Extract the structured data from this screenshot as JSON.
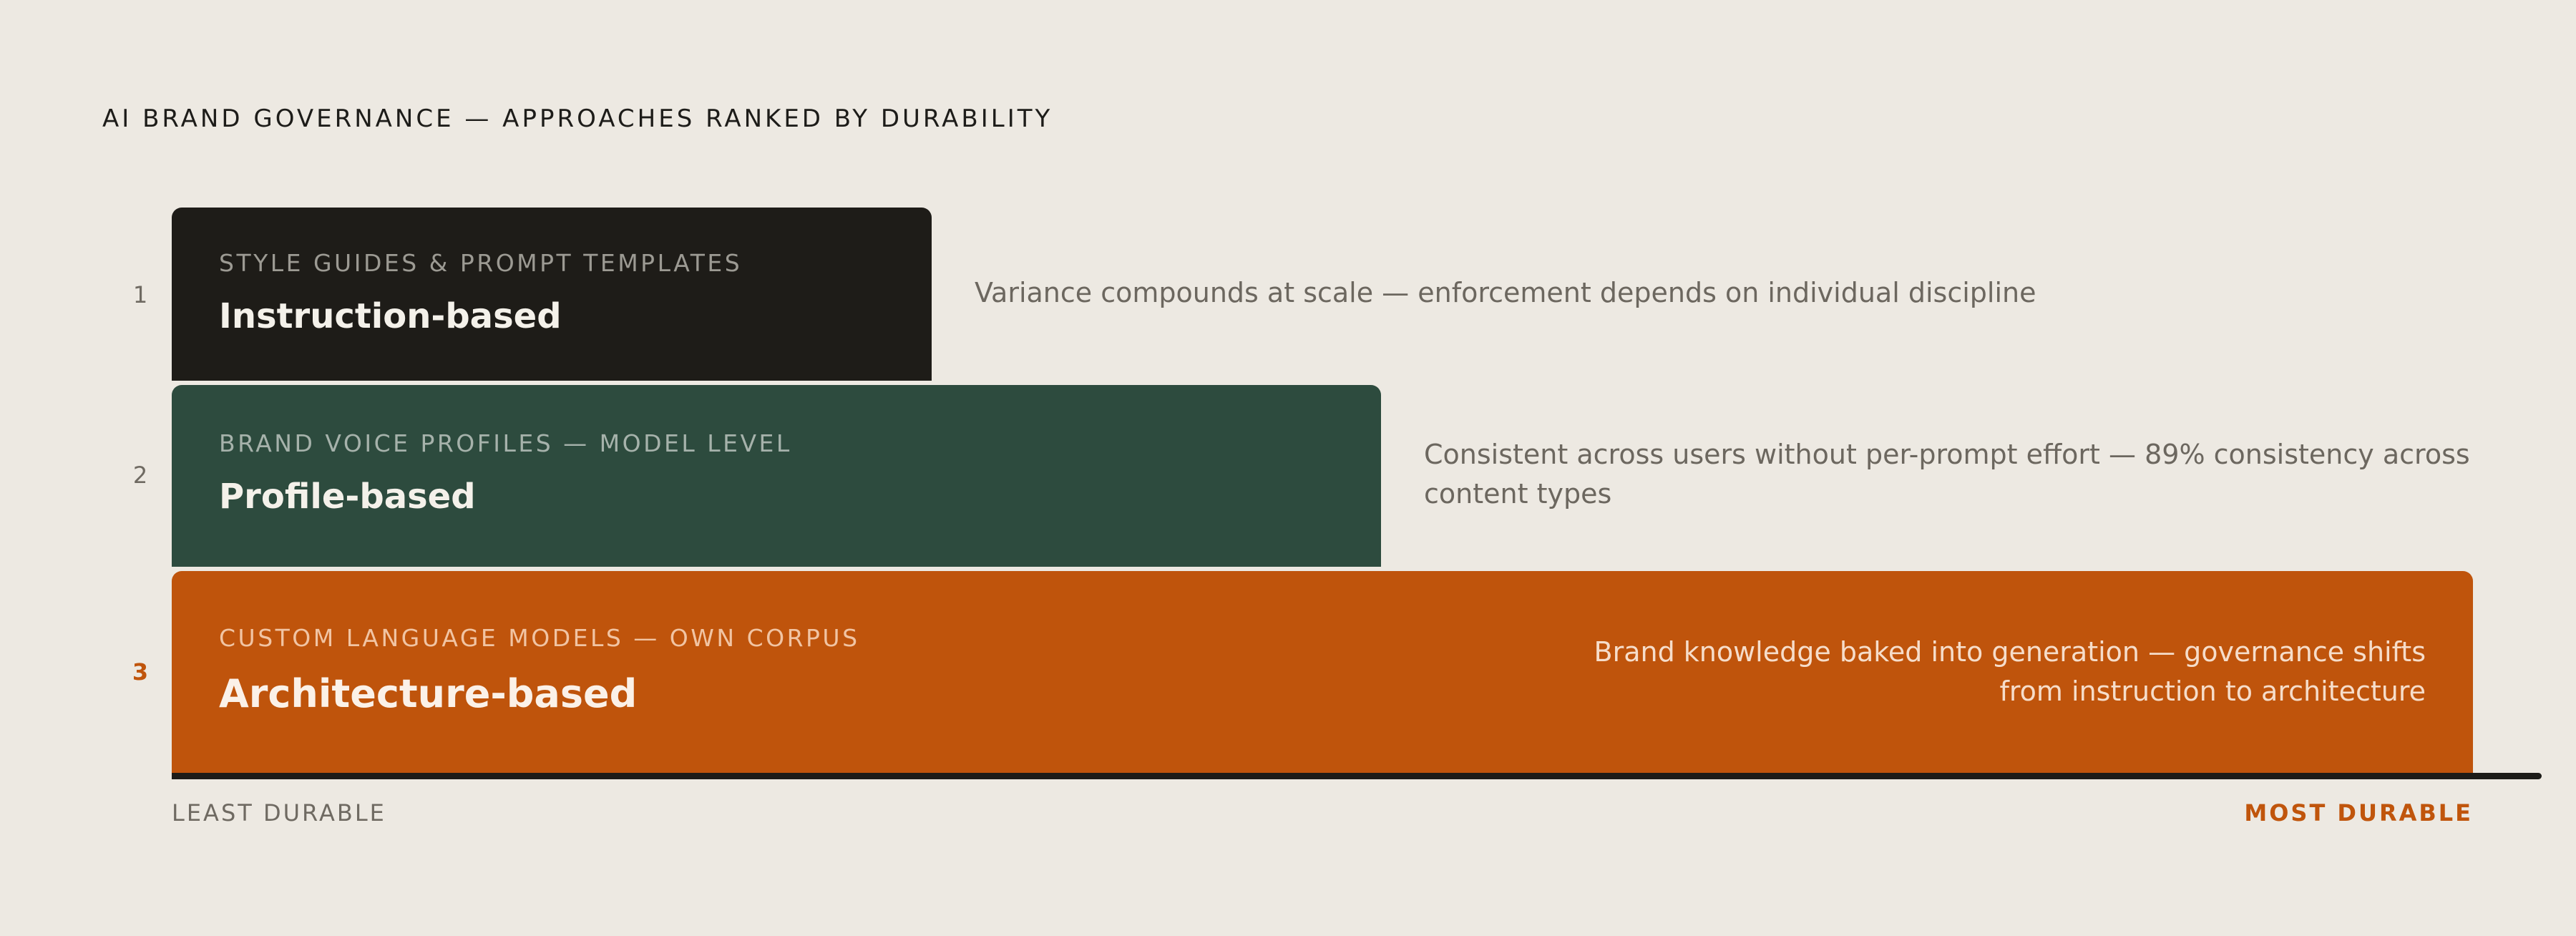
{
  "title": "AI BRAND GOVERNANCE — APPROACHES RANKED BY DURABILITY",
  "tiers": [
    {
      "rank": "1",
      "kicker": "STYLE GUIDES & PROMPT TEMPLATES",
      "name": "Instruction-based",
      "description": "Variance compounds at scale — enforcement depends on individual discipline",
      "color": "#1e1c18"
    },
    {
      "rank": "2",
      "kicker": "BRAND VOICE PROFILES — MODEL LEVEL",
      "name": "Profile-based",
      "description": "Consistent across users without per-prompt effort — 89% consistency across content types",
      "color": "#2d4b3e"
    },
    {
      "rank": "3",
      "kicker": "CUSTOM LANGUAGE MODELS — OWN CORPUS",
      "name": "Architecture-based",
      "description": "Brand knowledge baked into generation — governance shifts from instruction to architecture",
      "color": "#bf540c"
    }
  ],
  "axis": {
    "left_label": "LEAST DURABLE",
    "right_label": "MOST DURABLE",
    "accent_color": "#c0550c"
  }
}
